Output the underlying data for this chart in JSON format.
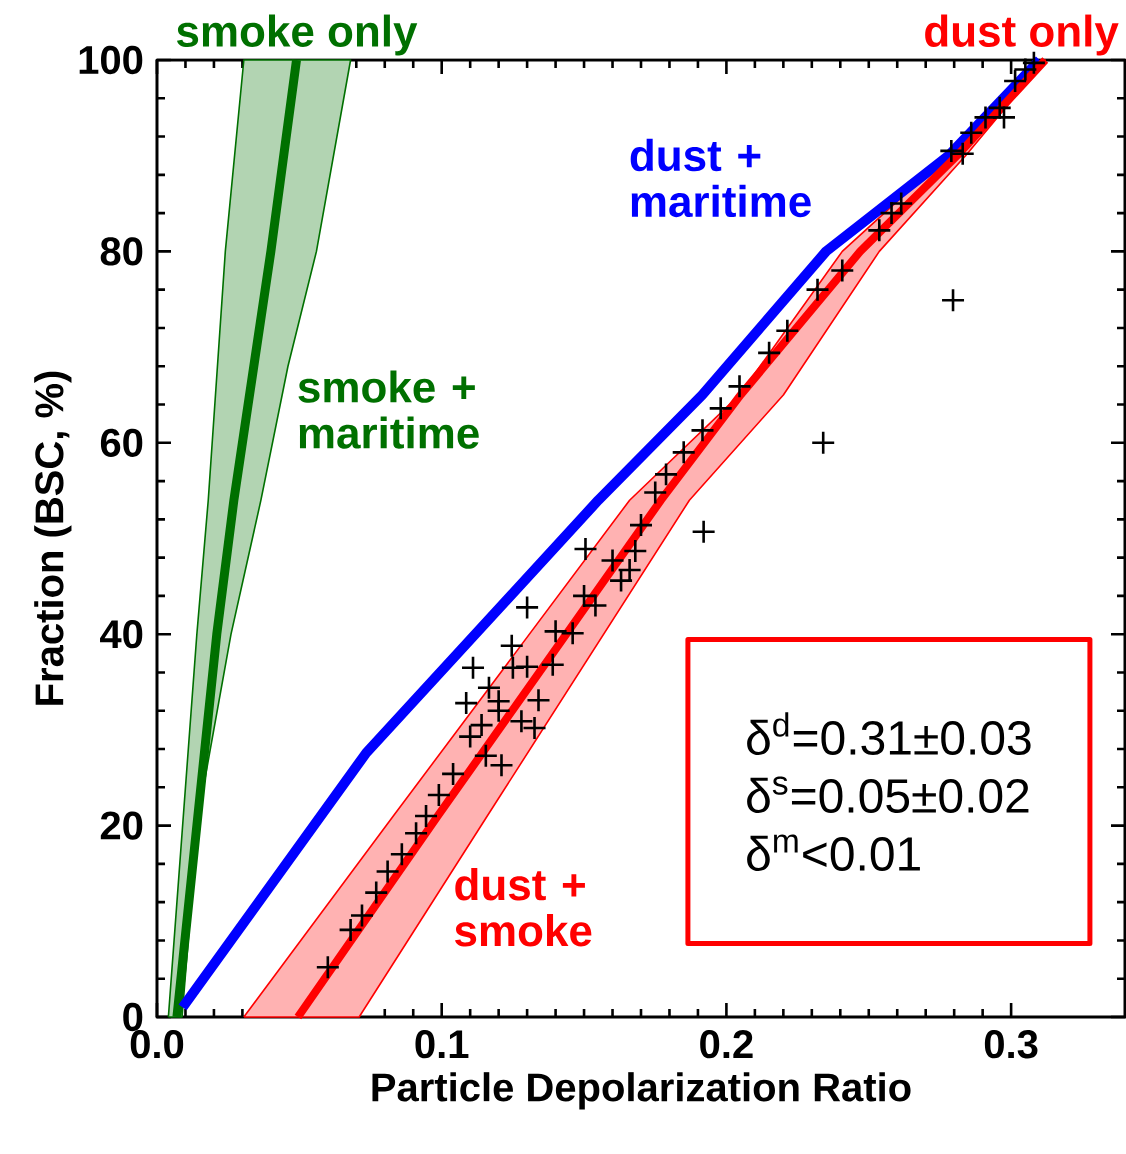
{
  "chart_data": {
    "type": "line",
    "xlabel": "Particle Depolarization Ratio",
    "ylabel": "Fraction (BSC, %)",
    "xlim": [
      0,
      0.34
    ],
    "ylim": [
      0,
      100
    ],
    "xticks": [
      {
        "value": 0,
        "label": "0.0"
      },
      0.1,
      0.2,
      0.3
    ],
    "yticks": [
      0,
      20,
      40,
      60,
      80,
      100
    ],
    "series": [
      {
        "type": "area",
        "color": "#007000",
        "x": [
          0.004,
          0.009,
          0.014,
          0.018,
          0.024,
          0.0305,
          0.068,
          0.056,
          0.046,
          0.0365,
          0.026,
          0.0145,
          0.0088
        ],
        "values": [
          0,
          20,
          40,
          54,
          80,
          100,
          100,
          80,
          68,
          54,
          40,
          21,
          0
        ]
      },
      {
        "type": "line",
        "name": "smoke + maritime",
        "color": "#007000",
        "x": [
          0.007,
          0.014,
          0.021,
          0.027,
          0.034,
          0.04,
          0.049
        ],
        "values": [
          0,
          20,
          40,
          54,
          68,
          80,
          100
        ]
      },
      {
        "type": "area",
        "color": "#ff0000",
        "x": [
          0.0305,
          0.083,
          0.166,
          0.2046,
          0.2407,
          0.2776,
          0.312,
          0.284,
          0.2537,
          0.22,
          0.187,
          0.116,
          0.071
        ],
        "values": [
          0,
          21,
          54,
          65,
          80,
          90,
          100,
          90,
          80,
          65,
          54,
          21,
          0
        ]
      },
      {
        "type": "line",
        "name": "dust + maritime",
        "color": "#0000ff",
        "x": [
          0.009,
          0.0735,
          0.155,
          0.1915,
          0.235,
          0.278,
          0.31
        ],
        "values": [
          1,
          27.6,
          54,
          65,
          80,
          90,
          100
        ]
      },
      {
        "type": "line",
        "name": "dust + smoke",
        "color": "#ff0000",
        "x": [
          0.0495,
          0.0986,
          0.177,
          0.205,
          0.247,
          0.281,
          0.312
        ],
        "values": [
          0,
          21,
          54,
          65,
          80,
          90,
          100
        ]
      },
      {
        "type": "scatter",
        "marker": "cross",
        "color": "#000000",
        "x": [
          0.06,
          0.068,
          0.072,
          0.077,
          0.081,
          0.086,
          0.091,
          0.0945,
          0.099,
          0.104,
          0.1086,
          0.111,
          0.1166,
          0.121,
          0.1246,
          0.125,
          0.13,
          0.1326,
          0.134,
          0.1155,
          0.114,
          0.12,
          0.128,
          0.139,
          0.146,
          0.1505,
          0.154,
          0.163,
          0.166,
          0.168,
          0.11,
          0.12,
          0.13,
          0.14,
          0.15,
          0.16,
          0.17,
          0.175,
          0.1788,
          0.185,
          0.1916,
          0.198,
          0.2046,
          0.215,
          0.2214,
          0.232,
          0.2407,
          0.2537,
          0.258,
          0.2614,
          0.279,
          0.283,
          0.286,
          0.291,
          0.296,
          0.2975,
          0.3014,
          0.305,
          0.308,
          0.192,
          0.234,
          0.2796
        ],
        "values": [
          5.2,
          9.1,
          10.6,
          13.0,
          15.2,
          17.0,
          19.2,
          21.0,
          23.2,
          25.4,
          32.8,
          36.5,
          34.4,
          26.3,
          38.8,
          36.5,
          42.8,
          30.2,
          33.1,
          27.3,
          30.5,
          32.0,
          30.9,
          36.8,
          40.1,
          48.9,
          43.0,
          45.6,
          46.7,
          48.7,
          29.3,
          33.0,
          36.6,
          40.3,
          44.0,
          47.7,
          51.4,
          54.8,
          56.7,
          59.0,
          61.3,
          63.6,
          65.9,
          69.4,
          71.7,
          76.0,
          78.0,
          82.2,
          84.0,
          85.0,
          90.5,
          90.2,
          92.4,
          94.0,
          95.0,
          94.0,
          97.8,
          99.0,
          99.7,
          50.7,
          60.0,
          74.9
        ]
      }
    ],
    "annotations": [
      {
        "text": "smoke only",
        "x": 0.049,
        "y": 100
      },
      {
        "text": "dust only",
        "x": 0.312,
        "y": 100
      },
      "δ$^{d}$=0.31±0.03",
      "δ$^{s}$=0.05±0.02",
      "δ$^{m}$<0.01"
    ]
  }
}
